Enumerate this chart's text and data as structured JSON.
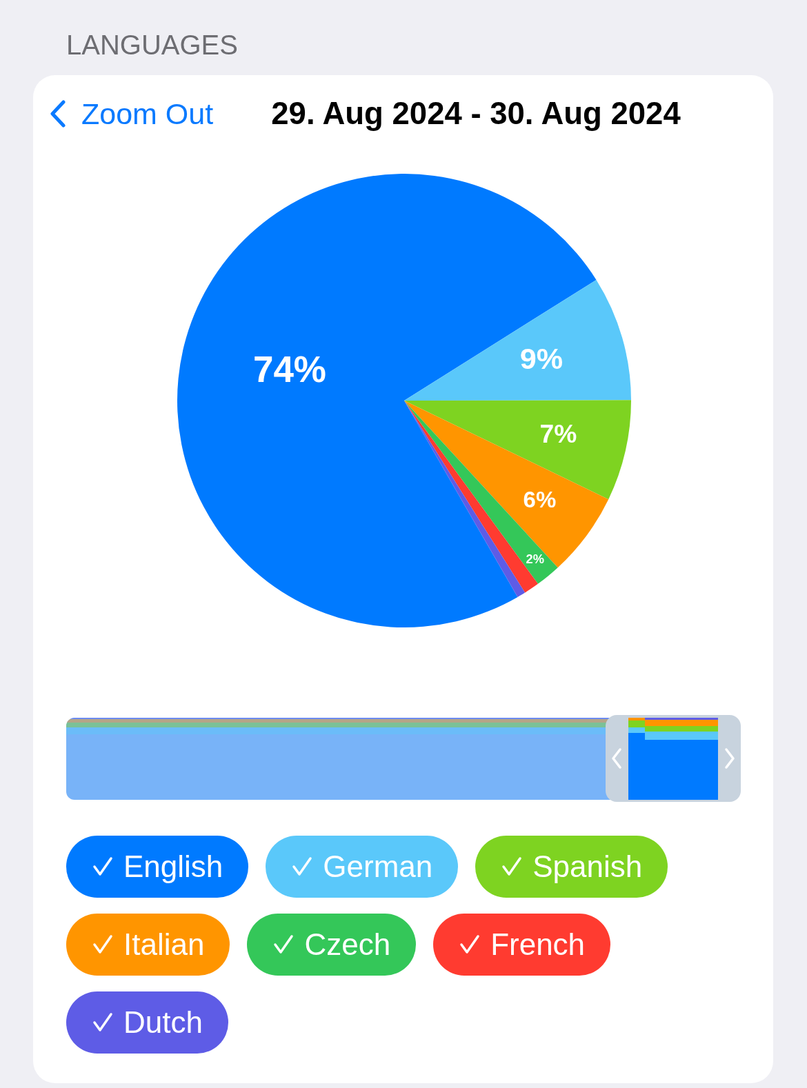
{
  "chart_data": {
    "type": "pie",
    "title": "LANGUAGES",
    "subtitle": "29. Aug 2024 - 30. Aug 2024",
    "annotations": [
      "Zoom Out"
    ],
    "categories": [
      "English",
      "German",
      "Spanish",
      "Italian",
      "Czech",
      "French",
      "Dutch"
    ],
    "values": [
      74.4,
      8.9,
      7.2,
      6.0,
      1.8,
      1.1,
      0.6
    ],
    "value_labels": [
      "74%",
      "9%",
      "7%",
      "6%",
      "2%",
      null,
      null
    ],
    "colors": [
      "#007aff",
      "#5ac8fa",
      "#7ed321",
      "#ff9500",
      "#34c759",
      "#ff3b30",
      "#5e5ce6"
    ],
    "legend": "bottom"
  }
}
